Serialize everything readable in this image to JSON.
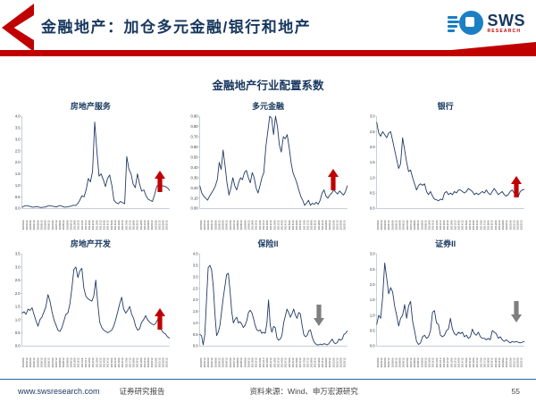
{
  "header": {
    "title": "金融地产：加仓多元金融/银行和地产",
    "logo": {
      "brand": "SWS",
      "sub": "RESEARCH"
    }
  },
  "main_title": "金融地产行业配置系数",
  "footer": {
    "website": "www.swsresearch.com",
    "report_type": "证券研究报告",
    "source": "资料来源：Wind、申万宏源研究",
    "page": "55"
  },
  "colors": {
    "accent_red": "#C00000",
    "navy": "#17375E",
    "line": "#1F3864",
    "arrow_up": "#C00000",
    "arrow_down": "#7F7F7F",
    "axis": "#9FB0C4",
    "tick_text": "#333333",
    "footer_line": "#2E5FA3",
    "logo_blue": "#1B7FC4"
  },
  "x_labels": [
    "2003/06",
    "2003/12",
    "2004/06",
    "2004/12",
    "2005/06",
    "2005/12",
    "2006/06",
    "2006/12",
    "2007/06",
    "2007/12",
    "2008/06",
    "2008/12",
    "2009/06",
    "2009/12",
    "2010/06",
    "2010/12",
    "2011/06",
    "2011/12",
    "2012/06",
    "2012/12",
    "2013/06",
    "2013/12",
    "2014/06",
    "2014/12",
    "2015/06",
    "2015/12",
    "2016/06",
    "2016/12",
    "2017/06",
    "2017/12",
    "2018/06",
    "2018/12",
    "2019/06",
    "2019/12",
    "2020/06",
    "2020/12",
    "2021/06",
    "2021/12",
    "2022/06",
    "2022/12"
  ],
  "chart_data": [
    {
      "type": "line",
      "title": "房地产服务",
      "y_min": 0,
      "y_max": 4.0,
      "trend_arrow": "up",
      "y_ticks": [
        "4.0",
        "3.5",
        "3.0",
        "2.5",
        "2.0",
        "1.5",
        "1.0",
        "0.5",
        "0.0"
      ],
      "values": [
        0.05,
        0.1,
        0.12,
        0.1,
        0.08,
        0.05,
        0.06,
        0.08,
        0.05,
        0.04,
        0.05,
        0.06,
        0.1,
        0.12,
        0.1,
        0.08,
        0.06,
        0.1,
        0.12,
        0.08,
        0.05,
        0.06,
        0.08,
        0.1,
        0.14,
        0.12,
        0.2,
        0.35,
        0.55,
        0.5,
        0.8,
        1.3,
        1.15,
        1.6,
        3.75,
        2.5,
        1.4,
        1.5,
        1.25,
        0.95,
        1.3,
        1.45,
        1.0,
        0.35,
        0.25,
        0.2,
        0.3,
        0.25,
        0.2,
        2.25,
        1.7,
        1.5,
        1.05,
        0.9,
        1.5,
        1.05,
        0.75,
        0.8,
        0.55,
        0.4,
        0.35,
        0.3,
        0.6,
        0.95,
        1.05,
        1.0,
        0.98,
        0.95,
        0.9,
        0.78
      ]
    },
    {
      "type": "line",
      "title": "多元金融",
      "y_min": 0,
      "y_max": 0.9,
      "trend_arrow": "up",
      "y_ticks": [
        "0.90",
        "0.80",
        "0.70",
        "0.60",
        "0.50",
        "0.40",
        "0.30",
        "0.20",
        "0.10",
        "0.00"
      ],
      "values": [
        0.22,
        0.15,
        0.12,
        0.1,
        0.08,
        0.12,
        0.15,
        0.18,
        0.22,
        0.28,
        0.45,
        0.38,
        0.57,
        0.42,
        0.25,
        0.13,
        0.2,
        0.3,
        0.22,
        0.18,
        0.25,
        0.3,
        0.28,
        0.35,
        0.37,
        0.3,
        0.25,
        0.35,
        0.3,
        0.2,
        0.15,
        0.22,
        0.3,
        0.35,
        0.6,
        0.75,
        0.9,
        0.88,
        0.72,
        0.9,
        0.8,
        0.62,
        0.55,
        0.7,
        0.68,
        0.72,
        0.6,
        0.45,
        0.35,
        0.3,
        0.25,
        0.18,
        0.12,
        0.08,
        0.03,
        0.05,
        0.08,
        0.03,
        0.05,
        0.04,
        0.06,
        0.04,
        0.08,
        0.15,
        0.18,
        0.12,
        0.1,
        0.13,
        0.15,
        0.18,
        0.16,
        0.14,
        0.17,
        0.15,
        0.13,
        0.16,
        0.22
      ]
    },
    {
      "type": "line",
      "title": "银行",
      "y_min": 0,
      "y_max": 3.0,
      "trend_arrow": "up",
      "y_ticks": [
        "3.0",
        "2.5",
        "2.0",
        "1.5",
        "1.0",
        "0.5",
        "0.0"
      ],
      "values": [
        2.8,
        2.45,
        2.35,
        2.5,
        2.4,
        2.3,
        2.45,
        2.5,
        2.2,
        1.9,
        1.6,
        1.3,
        1.45,
        2.3,
        1.9,
        1.5,
        1.2,
        1.25,
        1.0,
        0.8,
        0.6,
        0.75,
        0.8,
        0.75,
        0.8,
        0.55,
        0.45,
        0.55,
        0.4,
        0.3,
        0.28,
        0.25,
        0.3,
        0.28,
        0.5,
        0.55,
        0.45,
        0.5,
        0.45,
        0.55,
        0.5,
        0.6,
        0.6,
        0.55,
        0.5,
        0.55,
        0.65,
        0.6,
        0.55,
        0.45,
        0.5,
        0.45,
        0.5,
        0.55,
        0.5,
        0.6,
        0.5,
        0.45,
        0.55,
        0.65,
        0.55,
        0.45,
        0.5,
        0.55,
        0.45,
        0.4,
        0.45,
        0.55,
        0.6,
        0.5,
        0.4,
        0.38,
        0.55,
        0.6,
        0.62
      ]
    },
    {
      "type": "line",
      "title": "房地产开发",
      "y_min": 0,
      "y_max": 3.5,
      "trend_arrow": "up",
      "y_ticks": [
        "3.5",
        "3.0",
        "2.5",
        "2.0",
        "1.5",
        "1.0",
        "0.5",
        "0.0"
      ],
      "values": [
        1.25,
        1.3,
        1.2,
        1.4,
        1.35,
        1.45,
        1.2,
        0.95,
        0.75,
        1.0,
        1.1,
        1.3,
        1.5,
        1.95,
        1.7,
        1.3,
        1.0,
        0.8,
        0.6,
        0.55,
        0.7,
        0.95,
        1.2,
        1.25,
        1.6,
        2.2,
        2.9,
        3.0,
        2.6,
        2.85,
        2.95,
        2.2,
        1.9,
        1.8,
        1.75,
        1.7,
        1.9,
        2.5,
        1.6,
        0.9,
        0.7,
        0.6,
        0.55,
        0.5,
        0.55,
        0.6,
        0.75,
        1.0,
        1.3,
        1.6,
        1.85,
        1.4,
        1.25,
        1.35,
        1.5,
        1.2,
        1.05,
        0.75,
        0.6,
        0.65,
        0.9,
        1.0,
        1.15,
        1.0,
        0.9,
        0.85,
        0.8,
        0.85,
        1.0,
        0.95,
        0.6,
        0.5,
        0.45,
        0.35,
        0.3
      ]
    },
    {
      "type": "line",
      "title": "保险II",
      "y_min": 0,
      "y_max": 4.0,
      "trend_arrow": "down",
      "y_ticks": [
        "4.0",
        "3.5",
        "3.0",
        "2.5",
        "2.0",
        "1.5",
        "1.0",
        "0.5",
        "0.0"
      ],
      "values": [
        0.5,
        0.45,
        0.05,
        0.5,
        2.0,
        3.4,
        3.5,
        3.3,
        2.6,
        1.4,
        0.45,
        0.6,
        0.9,
        1.5,
        2.1,
        2.6,
        3.1,
        3.15,
        2.4,
        1.5,
        1.0,
        1.15,
        1.25,
        1.0,
        1.05,
        0.95,
        0.8,
        0.9,
        1.1,
        1.45,
        1.55,
        1.45,
        1.2,
        0.9,
        0.7,
        0.65,
        0.7,
        0.55,
        0.6,
        0.55,
        1.0,
        2.0,
        0.9,
        0.6,
        0.85,
        0.8,
        0.35,
        0.25,
        0.3,
        0.45,
        1.0,
        1.3,
        1.6,
        1.45,
        1.25,
        1.4,
        1.6,
        1.35,
        1.2,
        1.45,
        1.4,
        0.9,
        0.5,
        0.4,
        0.45,
        0.65,
        0.7,
        0.4,
        0.2,
        0.1,
        0.05,
        0.05,
        0.08,
        0.05,
        0.1,
        0.08,
        0.05,
        0.1,
        0.2,
        0.3,
        0.15,
        0.1,
        0.15,
        0.3,
        0.25,
        0.3,
        0.5,
        0.55,
        0.65
      ]
    },
    {
      "type": "line",
      "title": "证券II",
      "y_min": 0,
      "y_max": 3.0,
      "trend_arrow": "down",
      "y_ticks": [
        "3.0",
        "2.5",
        "2.0",
        "1.5",
        "1.0",
        "0.5",
        "0.0"
      ],
      "values": [
        0.7,
        1.0,
        0.9,
        1.6,
        2.7,
        2.2,
        1.7,
        1.9,
        1.75,
        1.3,
        1.0,
        0.65,
        0.9,
        1.0,
        1.35,
        0.9,
        1.3,
        1.45,
        0.8,
        0.5,
        0.15,
        0.05,
        0.1,
        0.3,
        0.35,
        0.25,
        0.3,
        0.5,
        1.1,
        1.15,
        0.75,
        0.7,
        0.35,
        0.3,
        0.35,
        0.5,
        0.55,
        0.9,
        0.55,
        0.4,
        0.35,
        0.45,
        0.4,
        0.45,
        0.3,
        0.35,
        0.25,
        0.3,
        0.55,
        0.4,
        0.35,
        0.45,
        0.3,
        0.25,
        0.25,
        0.2,
        0.25,
        0.2,
        0.5,
        0.45,
        0.4,
        0.25,
        0.3,
        0.2,
        0.15,
        0.2,
        0.15,
        0.1,
        0.15,
        0.12,
        0.15,
        0.12,
        0.1,
        0.12,
        0.15
      ]
    }
  ]
}
